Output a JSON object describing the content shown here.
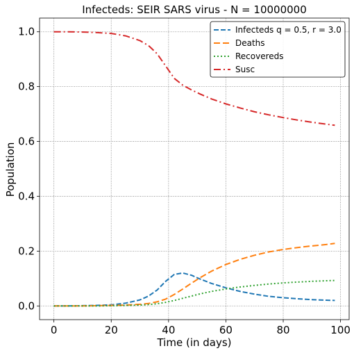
{
  "chart_data": {
    "type": "line",
    "title": "Infecteds: SEIR SARS virus -  N = 10000000",
    "xlabel": "Time (in days)",
    "ylabel": "Population",
    "xlim": [
      -5,
      103
    ],
    "ylim": [
      -0.05,
      1.05
    ],
    "xticks": [
      0,
      20,
      40,
      60,
      80,
      100
    ],
    "yticks": [
      0.0,
      0.2,
      0.4,
      0.6,
      0.8,
      1.0
    ],
    "xtick_labels": [
      "0",
      "20",
      "40",
      "60",
      "80",
      "100"
    ],
    "ytick_labels": [
      "0.0",
      "0.2",
      "0.4",
      "0.6",
      "0.8",
      "1.0"
    ],
    "grid": true,
    "legend_position": "top-right",
    "x": [
      0,
      5,
      10,
      15,
      20,
      25,
      30,
      33,
      36,
      39,
      42,
      45,
      48,
      51,
      55,
      60,
      65,
      70,
      75,
      80,
      85,
      90,
      95,
      98
    ],
    "series": [
      {
        "name": "Infecteds q = 0.5, r = 3.0",
        "color": "#1f77b4",
        "dash": "dashed",
        "values": [
          0,
          0,
          0.001,
          0.002,
          0.004,
          0.01,
          0.022,
          0.036,
          0.058,
          0.09,
          0.115,
          0.12,
          0.112,
          0.098,
          0.082,
          0.066,
          0.053,
          0.043,
          0.035,
          0.03,
          0.026,
          0.023,
          0.021,
          0.02
        ]
      },
      {
        "name": "Deaths",
        "color": "#ff7f0e",
        "dash": "longdash",
        "values": [
          0,
          0,
          0,
          0.001,
          0.002,
          0.003,
          0.006,
          0.009,
          0.015,
          0.025,
          0.042,
          0.062,
          0.083,
          0.103,
          0.127,
          0.151,
          0.17,
          0.185,
          0.197,
          0.206,
          0.213,
          0.219,
          0.224,
          0.228
        ]
      },
      {
        "name": "Recovereds",
        "color": "#2ca02c",
        "dash": "dotted",
        "values": [
          0,
          0,
          0,
          0,
          0.001,
          0.002,
          0.003,
          0.005,
          0.008,
          0.013,
          0.02,
          0.028,
          0.036,
          0.044,
          0.053,
          0.062,
          0.069,
          0.075,
          0.08,
          0.084,
          0.087,
          0.09,
          0.092,
          0.093
        ]
      },
      {
        "name": "Susc",
        "color": "#d62728",
        "dash": "dashdot",
        "values": [
          1.0,
          1.0,
          0.999,
          0.997,
          0.994,
          0.985,
          0.968,
          0.95,
          0.92,
          0.875,
          0.83,
          0.805,
          0.788,
          0.773,
          0.755,
          0.737,
          0.722,
          0.708,
          0.697,
          0.687,
          0.678,
          0.67,
          0.663,
          0.659
        ]
      }
    ]
  }
}
